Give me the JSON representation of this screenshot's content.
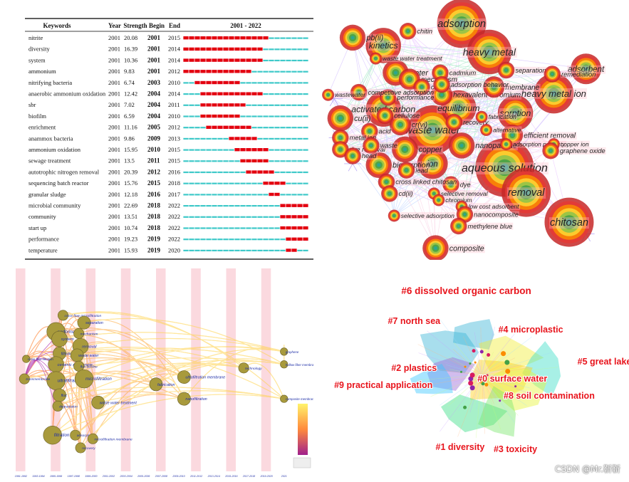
{
  "chart_data": [
    {
      "type": "table",
      "columns": [
        "Keywords",
        "Year",
        "Strength",
        "Begin",
        "End",
        "2001 - 2022"
      ],
      "range": [
        2001,
        2022
      ],
      "rows": [
        {
          "keyword": "nitrite",
          "year": 2001,
          "strength": "20.08",
          "begin": 2001,
          "end": 2015
        },
        {
          "keyword": "diversity",
          "year": 2001,
          "strength": "16.39",
          "begin": 2001,
          "end": 2014
        },
        {
          "keyword": "system",
          "year": 2001,
          "strength": "10.36",
          "begin": 2001,
          "end": 2014
        },
        {
          "keyword": "ammonium",
          "year": 2001,
          "strength": "9.83",
          "begin": 2001,
          "end": 2012
        },
        {
          "keyword": "nitrifying bacteria",
          "year": 2001,
          "strength": "6.74",
          "begin": 2003,
          "end": 2010
        },
        {
          "keyword": "anaerobic ammonium oxidation",
          "year": 2001,
          "strength": "12.42",
          "begin": 2004,
          "end": 2014
        },
        {
          "keyword": "sbr",
          "year": 2001,
          "strength": "7.02",
          "begin": 2004,
          "end": 2011
        },
        {
          "keyword": "biofilm",
          "year": 2001,
          "strength": "6.59",
          "begin": 2004,
          "end": 2010
        },
        {
          "keyword": "enrichment",
          "year": 2001,
          "strength": "11.16",
          "begin": 2005,
          "end": 2012
        },
        {
          "keyword": "anammox bacteria",
          "year": 2001,
          "strength": "9.86",
          "begin": 2009,
          "end": 2013
        },
        {
          "keyword": "ammonium oxidation",
          "year": 2001,
          "strength": "15.95",
          "begin": 2010,
          "end": 2015
        },
        {
          "keyword": "sewage treatment",
          "year": 2001,
          "strength": "13.5",
          "begin": 2011,
          "end": 2015
        },
        {
          "keyword": "autotrophic nitrogen removal",
          "year": 2001,
          "strength": "20.39",
          "begin": 2012,
          "end": 2016
        },
        {
          "keyword": "sequencing batch reactor",
          "year": 2001,
          "strength": "15.76",
          "begin": 2015,
          "end": 2018
        },
        {
          "keyword": "granular sludge",
          "year": 2001,
          "strength": "12.18",
          "begin": 2016,
          "end": 2017
        },
        {
          "keyword": "microbial community",
          "year": 2001,
          "strength": "22.69",
          "begin": 2018,
          "end": 2022
        },
        {
          "keyword": "community",
          "year": 2001,
          "strength": "13.51",
          "begin": 2018,
          "end": 2022
        },
        {
          "keyword": "start up",
          "year": 2001,
          "strength": "10.74",
          "begin": 2018,
          "end": 2022
        },
        {
          "keyword": "performance",
          "year": 2001,
          "strength": "19.23",
          "begin": 2019,
          "end": 2022
        },
        {
          "keyword": "temperature",
          "year": 2001,
          "strength": "15.93",
          "begin": 2019,
          "end": 2020
        }
      ],
      "colors": {
        "burst": "#e3000f",
        "normal": "#3ec9c9"
      }
    },
    {
      "type": "scatter",
      "nodes": [
        {
          "label": "adsorption",
          "w": 5,
          "x": 0.455,
          "y": 0.09
        },
        {
          "label": "heavy metal",
          "w": 4.5,
          "x": 0.545,
          "y": 0.2
        },
        {
          "label": "aqueous solution",
          "w": 6,
          "x": 0.595,
          "y": 0.645
        },
        {
          "label": "waste water",
          "w": 5,
          "x": 0.36,
          "y": 0.5
        },
        {
          "label": "removal",
          "w": 5,
          "x": 0.665,
          "y": 0.74
        },
        {
          "label": "chitosan",
          "w": 5,
          "x": 0.805,
          "y": 0.855
        },
        {
          "label": "heavy metal ion",
          "w": 4,
          "x": 0.755,
          "y": 0.36
        },
        {
          "label": "adsorbent",
          "w": 3,
          "x": 0.86,
          "y": 0.265
        },
        {
          "label": "sorption",
          "w": 3.5,
          "x": 0.63,
          "y": 0.435
        },
        {
          "label": "equilibrium",
          "w": 3.5,
          "x": 0.445,
          "y": 0.415
        },
        {
          "label": "activated carbon",
          "w": 3.5,
          "x": 0.2,
          "y": 0.42
        },
        {
          "label": "kinetics",
          "w": 3.5,
          "x": 0.2,
          "y": 0.175
        },
        {
          "label": "pb(ii)",
          "w": 2.5,
          "x": 0.1,
          "y": 0.145
        },
        {
          "label": "water",
          "w": 2.5,
          "x": 0.24,
          "y": 0.28
        },
        {
          "label": "ion",
          "w": 3,
          "x": 0.36,
          "y": 0.63
        },
        {
          "label": "biosorption",
          "w": 2.5,
          "x": 0.185,
          "y": 0.635
        },
        {
          "label": "cu(ii)",
          "w": 2.5,
          "x": 0.06,
          "y": 0.455
        },
        {
          "label": "copper",
          "w": 2.5,
          "x": 0.27,
          "y": 0.575
        },
        {
          "label": "nanoparticle",
          "w": 2.5,
          "x": 0.455,
          "y": 0.56
        },
        {
          "label": "composite",
          "w": 2.5,
          "x": 0.37,
          "y": 0.955
        },
        {
          "label": "hexavalent chromium",
          "w": 2,
          "x": 0.39,
          "y": 0.365
        },
        {
          "label": "cr(vi)",
          "w": 2,
          "x": 0.255,
          "y": 0.48
        },
        {
          "label": "efficient removal",
          "w": 2,
          "x": 0.62,
          "y": 0.52
        },
        {
          "label": "membrane",
          "w": 2,
          "x": 0.56,
          "y": 0.335
        },
        {
          "label": "mechanism",
          "w": 2,
          "x": 0.285,
          "y": 0.305
        },
        {
          "label": "cadmium",
          "w": 1.5,
          "x": 0.385,
          "y": 0.28
        },
        {
          "label": "separation",
          "w": 1.5,
          "x": 0.6,
          "y": 0.27
        },
        {
          "label": "remediation",
          "w": 1.5,
          "x": 0.75,
          "y": 0.285
        },
        {
          "label": "carbon",
          "w": 1.5,
          "x": 0.325,
          "y": 0.335
        },
        {
          "label": "performance",
          "w": 1.5,
          "x": 0.215,
          "y": 0.375
        },
        {
          "label": "adsorption behavior",
          "w": 1.5,
          "x": 0.39,
          "y": 0.325
        },
        {
          "label": "competitive adsorption",
          "w": 1.5,
          "x": 0.12,
          "y": 0.355
        },
        {
          "label": "wastewater",
          "w": 1,
          "x": 0.02,
          "y": 0.365
        },
        {
          "label": "cellulose",
          "w": 1.5,
          "x": 0.205,
          "y": 0.445
        },
        {
          "label": "acid",
          "w": 1.5,
          "x": 0.155,
          "y": 0.505
        },
        {
          "label": "metal ion",
          "w": 1.5,
          "x": 0.06,
          "y": 0.53
        },
        {
          "label": "dye removal",
          "w": 1.5,
          "x": 0.06,
          "y": 0.575
        },
        {
          "label": "waste",
          "w": 1.5,
          "x": 0.16,
          "y": 0.56
        },
        {
          "label": "head",
          "w": 1.5,
          "x": 0.1,
          "y": 0.6
        },
        {
          "label": "lead",
          "w": 1.5,
          "x": 0.275,
          "y": 0.655
        },
        {
          "label": "recovery",
          "w": 1.5,
          "x": 0.43,
          "y": 0.47
        },
        {
          "label": "alternative",
          "w": 1,
          "x": 0.535,
          "y": 0.5
        },
        {
          "label": "fabrication",
          "w": 1,
          "x": 0.52,
          "y": 0.45
        },
        {
          "label": "adsorption property",
          "w": 1,
          "x": 0.6,
          "y": 0.555
        },
        {
          "label": "copper ion",
          "w": 1,
          "x": 0.755,
          "y": 0.555
        },
        {
          "label": "graphene oxide",
          "w": 1.5,
          "x": 0.745,
          "y": 0.58
        },
        {
          "label": "dye",
          "w": 1.5,
          "x": 0.42,
          "y": 0.71
        },
        {
          "label": "cross linked chitosan",
          "w": 1.5,
          "x": 0.21,
          "y": 0.7
        },
        {
          "label": "cd(ii)",
          "w": 1.5,
          "x": 0.22,
          "y": 0.745
        },
        {
          "label": "selective removal",
          "w": 1,
          "x": 0.365,
          "y": 0.745
        },
        {
          "label": "chromium",
          "w": 1,
          "x": 0.38,
          "y": 0.77
        },
        {
          "label": "low cost adsorbent",
          "w": 1,
          "x": 0.455,
          "y": 0.795
        },
        {
          "label": "nanocomposite",
          "w": 1.5,
          "x": 0.465,
          "y": 0.825
        },
        {
          "label": "selective adsorption",
          "w": 1,
          "x": 0.235,
          "y": 0.83
        },
        {
          "label": "methylene blue",
          "w": 1.5,
          "x": 0.445,
          "y": 0.87
        },
        {
          "label": "chitin",
          "w": 1.5,
          "x": 0.28,
          "y": 0.12
        },
        {
          "label": "waste water treatment",
          "w": 1,
          "x": 0.175,
          "y": 0.225
        }
      ]
    },
    {
      "type": "scatter",
      "years": [
        "1991-1992",
        "1993-1994",
        "1995-1996",
        "1997-1998",
        "1999-2000",
        "2001-2002",
        "2003-2004",
        "2005-2006",
        "2007-2008",
        "2009-2010",
        "2011-2012",
        "2013-2014",
        "2015-2016",
        "2017-2018",
        "2019-2020",
        "2021"
      ],
      "nodes": [
        {
          "label": "performance",
          "w": 3,
          "x": 2,
          "y": 0.27
        },
        {
          "label": "system",
          "w": 2.5,
          "x": 2.2,
          "y": 0.31
        },
        {
          "label": "cross flow microfiltration",
          "w": 1.5,
          "x": 2.4,
          "y": 0.18
        },
        {
          "label": "separation",
          "w": 2,
          "x": 3.6,
          "y": 0.22
        },
        {
          "label": "mechanism",
          "w": 1.5,
          "x": 3.3,
          "y": 0.28
        },
        {
          "label": "removal",
          "w": 2.5,
          "x": 3.4,
          "y": 0.35
        },
        {
          "label": "filtration",
          "w": 2,
          "x": 2.2,
          "y": 0.39
        },
        {
          "label": "waste water",
          "w": 2,
          "x": 3.2,
          "y": 0.4
        },
        {
          "label": "ceramic membrane",
          "w": 2.5,
          "x": 2,
          "y": 0.45
        },
        {
          "label": "ultrafiltration",
          "w": 3,
          "x": 2,
          "y": 0.54
        },
        {
          "label": "flux",
          "w": 2,
          "x": 2.2,
          "y": 0.62
        },
        {
          "label": "degradation",
          "w": 1.5,
          "x": 2.1,
          "y": 0.68
        },
        {
          "label": "flux decline",
          "w": 1.5,
          "x": 3.3,
          "y": 0.46
        },
        {
          "label": "microfiltration",
          "w": 3,
          "x": 3.6,
          "y": 0.53
        },
        {
          "label": "waste water treatment",
          "w": 2,
          "x": 4.4,
          "y": 0.66
        },
        {
          "label": "fabrication",
          "w": 2,
          "x": 7.7,
          "y": 0.56
        },
        {
          "label": "ultrafiltration membrane",
          "w": 2,
          "x": 9.3,
          "y": 0.52
        },
        {
          "label": "nanofiltration",
          "w": 2,
          "x": 9.3,
          "y": 0.64
        },
        {
          "label": "filtration",
          "w": 3,
          "x": 1.8,
          "y": 0.84
        },
        {
          "label": "adsorption",
          "w": 1.5,
          "x": 3.1,
          "y": 0.84
        },
        {
          "label": "microfiltration membrane",
          "w": 1.5,
          "x": 4.1,
          "y": 0.86
        },
        {
          "label": "recovery",
          "w": 1.5,
          "x": 3.4,
          "y": 0.91
        },
        {
          "label": "technology",
          "w": 1.5,
          "x": 12.7,
          "y": 0.47
        },
        {
          "label": "transmembrane",
          "w": 1.5,
          "x": 0.2,
          "y": 0.53
        },
        {
          "label": "cross flow filtration",
          "w": 1,
          "x": 0.3,
          "y": 0.42
        },
        {
          "label": "hollow fiber membrane",
          "w": 1,
          "x": 15,
          "y": 0.45
        },
        {
          "label": "composite membrane",
          "w": 1,
          "x": 15,
          "y": 0.64
        },
        {
          "label": "graphene",
          "w": 1,
          "x": 15,
          "y": 0.38
        }
      ]
    },
    {
      "type": "scatter",
      "clusters": [
        {
          "label": "#6 dissolved organic carbon",
          "x": 0.47,
          "y": 0.12,
          "color": "#3fb8d8"
        },
        {
          "label": "#7 north sea",
          "x": 0.3,
          "y": 0.26,
          "color": "#3fb8d8"
        },
        {
          "label": "#4 microplastic",
          "x": 0.68,
          "y": 0.3,
          "color": "#f2ef3c"
        },
        {
          "label": "#5 great lake",
          "x": 0.92,
          "y": 0.45,
          "color": "#3fe0c8"
        },
        {
          "label": "#2 plastics",
          "x": 0.3,
          "y": 0.48,
          "color": "#a06cd8"
        },
        {
          "label": "#0 surface water",
          "x": 0.62,
          "y": 0.53,
          "color": "#ffd21e"
        },
        {
          "label": "#9 practical application",
          "x": 0.2,
          "y": 0.56,
          "color": "#3fc8ff"
        },
        {
          "label": "#8 soil contamination",
          "x": 0.74,
          "y": 0.61,
          "color": "#e8f53c"
        },
        {
          "label": "#1 diversity",
          "x": 0.45,
          "y": 0.85,
          "color": "#3ee08a"
        },
        {
          "label": "#3 toxicity",
          "x": 0.63,
          "y": 0.86,
          "color": "#7de870"
        }
      ]
    }
  ],
  "watermark": "CSDN @Mr.靳靳"
}
